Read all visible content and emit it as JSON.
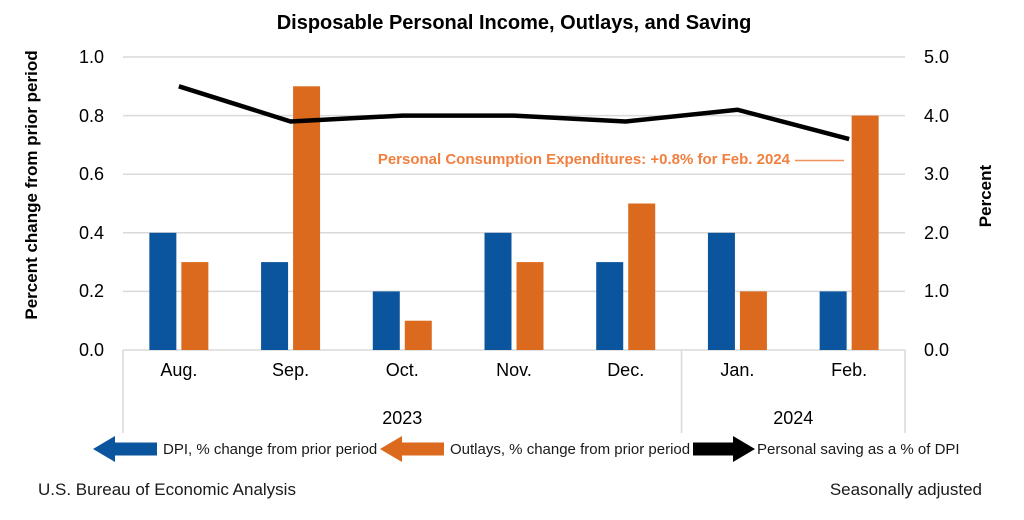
{
  "chart_data": {
    "type": "combo-bar-line",
    "title": "Disposable Personal Income, Outlays, and Saving",
    "categories": [
      "Aug.",
      "Sep.",
      "Oct.",
      "Nov.",
      "Dec.",
      "Jan.",
      "Feb."
    ],
    "year_groups": [
      {
        "label": "2023",
        "cols": 5
      },
      {
        "label": "2024",
        "cols": 2
      }
    ],
    "left_axis": {
      "title": "Percent change from prior period",
      "ticks": [
        "1.0",
        "0.8",
        "0.6",
        "0.4",
        "0.2",
        "0.0"
      ],
      "lim": [
        0,
        1.0
      ]
    },
    "right_axis": {
      "title": "Percent",
      "ticks": [
        "5.0",
        "4.0",
        "3.0",
        "2.0",
        "1.0",
        "0.0"
      ],
      "lim": [
        0,
        5.0
      ]
    },
    "series": [
      {
        "name": "DPI, % change from prior period",
        "type": "bar",
        "axis": "left",
        "color": "#0b559e",
        "values": [
          0.4,
          0.3,
          0.2,
          0.4,
          0.3,
          0.4,
          0.2
        ]
      },
      {
        "name": "Outlays, % change from prior period",
        "type": "bar",
        "axis": "left",
        "color": "#dc6a1e",
        "values": [
          0.3,
          0.9,
          0.1,
          0.3,
          0.5,
          0.2,
          0.8
        ]
      },
      {
        "name": "Personal saving as a % of DPI",
        "type": "line",
        "axis": "right",
        "color": "#000000",
        "values": [
          4.5,
          3.9,
          4.0,
          4.0,
          3.9,
          4.1,
          3.6
        ]
      }
    ],
    "grid": true,
    "legend_position": "bottom"
  },
  "annotation": {
    "text": "Personal Consumption Expenditures: +0.8% for Feb. 2024",
    "text_color": "#f08040",
    "leader_color": "#f0925c"
  },
  "legend": {
    "items": [
      {
        "label": "DPI, % change from prior period",
        "color": "#0b559e",
        "direction": "left"
      },
      {
        "label": "Outlays, % change from prior period",
        "color": "#dc6a1e",
        "direction": "left"
      },
      {
        "label": "Personal saving as a % of DPI",
        "color": "#000000",
        "direction": "right"
      }
    ]
  },
  "footer": {
    "source": "U.S. Bureau of Economic Analysis",
    "note": "Seasonally adjusted"
  },
  "colors": {
    "grid": "#d9d9d9"
  }
}
